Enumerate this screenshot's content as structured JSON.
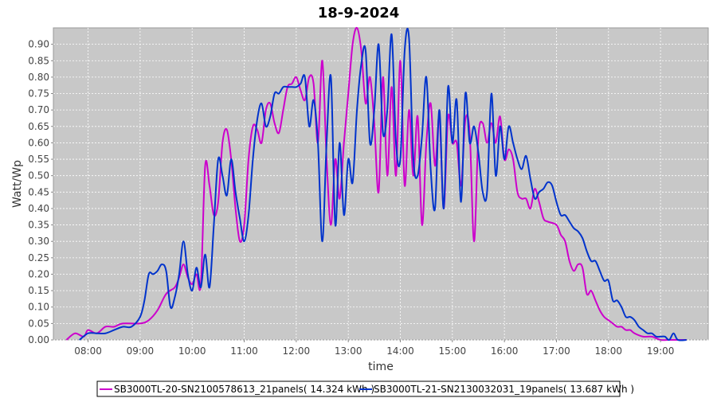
{
  "chart_data": {
    "type": "line",
    "title": "18-9-2024",
    "xlabel": "time",
    "ylabel": "Watt/Wp",
    "xlim": [
      "07:20",
      "19:55"
    ],
    "ylim": [
      0,
      0.95
    ],
    "x_ticks": [
      "08:00",
      "09:00",
      "10:00",
      "11:00",
      "12:00",
      "13:00",
      "14:00",
      "15:00",
      "16:00",
      "17:00",
      "18:00",
      "19:00"
    ],
    "y_ticks": [
      "0.00",
      "0.05",
      "0.10",
      "0.15",
      "0.20",
      "0.25",
      "0.30",
      "0.35",
      "0.40",
      "0.45",
      "0.50",
      "0.55",
      "0.60",
      "0.65",
      "0.70",
      "0.75",
      "0.80",
      "0.85",
      "0.90"
    ],
    "grid": true,
    "background": "#c8c8c8",
    "legend_position": "bottom",
    "series": [
      {
        "name": "SB3000TL-20-SN2100578613_21panels( 14.324 kWh )",
        "color": "#cc00cc",
        "points": [
          [
            "07:35",
            0.0
          ],
          [
            "07:45",
            0.02
          ],
          [
            "07:55",
            0.01
          ],
          [
            "08:00",
            0.03
          ],
          [
            "08:10",
            0.02
          ],
          [
            "08:20",
            0.04
          ],
          [
            "08:30",
            0.04
          ],
          [
            "08:40",
            0.05
          ],
          [
            "09:00",
            0.05
          ],
          [
            "09:10",
            0.06
          ],
          [
            "09:20",
            0.09
          ],
          [
            "09:30",
            0.14
          ],
          [
            "09:40",
            0.16
          ],
          [
            "09:45",
            0.19
          ],
          [
            "09:50",
            0.23
          ],
          [
            "09:55",
            0.19
          ],
          [
            "10:00",
            0.17
          ],
          [
            "10:05",
            0.2
          ],
          [
            "10:10",
            0.17
          ],
          [
            "10:15",
            0.53
          ],
          [
            "10:20",
            0.47
          ],
          [
            "10:25",
            0.38
          ],
          [
            "10:30",
            0.42
          ],
          [
            "10:35",
            0.6
          ],
          [
            "10:40",
            0.64
          ],
          [
            "10:45",
            0.55
          ],
          [
            "10:50",
            0.4
          ],
          [
            "10:55",
            0.3
          ],
          [
            "11:00",
            0.35
          ],
          [
            "11:05",
            0.55
          ],
          [
            "11:10",
            0.65
          ],
          [
            "11:15",
            0.64
          ],
          [
            "11:20",
            0.6
          ],
          [
            "11:25",
            0.7
          ],
          [
            "11:30",
            0.72
          ],
          [
            "11:35",
            0.66
          ],
          [
            "11:40",
            0.63
          ],
          [
            "11:45",
            0.7
          ],
          [
            "11:50",
            0.77
          ],
          [
            "11:55",
            0.78
          ],
          [
            "12:00",
            0.8
          ],
          [
            "12:05",
            0.76
          ],
          [
            "12:10",
            0.73
          ],
          [
            "12:15",
            0.8
          ],
          [
            "12:20",
            0.78
          ],
          [
            "12:25",
            0.6
          ],
          [
            "12:30",
            0.85
          ],
          [
            "12:35",
            0.55
          ],
          [
            "12:40",
            0.35
          ],
          [
            "12:45",
            0.55
          ],
          [
            "12:50",
            0.43
          ],
          [
            "12:55",
            0.6
          ],
          [
            "13:00",
            0.75
          ],
          [
            "13:05",
            0.9
          ],
          [
            "13:10",
            0.95
          ],
          [
            "13:15",
            0.88
          ],
          [
            "13:20",
            0.72
          ],
          [
            "13:25",
            0.8
          ],
          [
            "13:30",
            0.66
          ],
          [
            "13:35",
            0.45
          ],
          [
            "13:40",
            0.8
          ],
          [
            "13:45",
            0.5
          ],
          [
            "13:50",
            0.77
          ],
          [
            "13:55",
            0.5
          ],
          [
            "14:00",
            0.85
          ],
          [
            "14:05",
            0.47
          ],
          [
            "14:10",
            0.7
          ],
          [
            "14:15",
            0.5
          ],
          [
            "14:20",
            0.68
          ],
          [
            "14:25",
            0.35
          ],
          [
            "14:30",
            0.6
          ],
          [
            "14:35",
            0.72
          ],
          [
            "14:40",
            0.53
          ],
          [
            "14:45",
            0.68
          ],
          [
            "14:50",
            0.4
          ],
          [
            "14:55",
            0.68
          ],
          [
            "15:00",
            0.6
          ],
          [
            "15:05",
            0.6
          ],
          [
            "15:10",
            0.47
          ],
          [
            "15:15",
            0.67
          ],
          [
            "15:20",
            0.63
          ],
          [
            "15:25",
            0.3
          ],
          [
            "15:30",
            0.62
          ],
          [
            "15:35",
            0.66
          ],
          [
            "15:40",
            0.6
          ],
          [
            "15:45",
            0.66
          ],
          [
            "15:50",
            0.6
          ],
          [
            "15:55",
            0.68
          ],
          [
            "16:00",
            0.55
          ],
          [
            "16:05",
            0.58
          ],
          [
            "16:10",
            0.55
          ],
          [
            "16:15",
            0.45
          ],
          [
            "16:20",
            0.43
          ],
          [
            "16:25",
            0.43
          ],
          [
            "16:30",
            0.4
          ],
          [
            "16:35",
            0.46
          ],
          [
            "16:40",
            0.42
          ],
          [
            "16:45",
            0.37
          ],
          [
            "16:50",
            0.36
          ],
          [
            "17:00",
            0.35
          ],
          [
            "17:05",
            0.32
          ],
          [
            "17:10",
            0.3
          ],
          [
            "17:15",
            0.24
          ],
          [
            "17:20",
            0.21
          ],
          [
            "17:25",
            0.23
          ],
          [
            "17:30",
            0.22
          ],
          [
            "17:35",
            0.14
          ],
          [
            "17:40",
            0.15
          ],
          [
            "17:45",
            0.12
          ],
          [
            "17:50",
            0.09
          ],
          [
            "17:55",
            0.07
          ],
          [
            "18:00",
            0.06
          ],
          [
            "18:05",
            0.05
          ],
          [
            "18:10",
            0.04
          ],
          [
            "18:15",
            0.04
          ],
          [
            "18:20",
            0.03
          ],
          [
            "18:25",
            0.03
          ],
          [
            "18:30",
            0.02
          ],
          [
            "18:40",
            0.01
          ],
          [
            "18:50",
            0.01
          ],
          [
            "19:00",
            0.0
          ],
          [
            "19:10",
            0.0
          ],
          [
            "19:20",
            0.0
          ],
          [
            "19:30",
            0.0
          ]
        ]
      },
      {
        "name": "SB3000TL-21-SN2130032031_19panels( 13.687 kWh )",
        "color": "#0033cc",
        "points": [
          [
            "07:50",
            0.0
          ],
          [
            "08:00",
            0.02
          ],
          [
            "08:10",
            0.02
          ],
          [
            "08:20",
            0.02
          ],
          [
            "08:30",
            0.03
          ],
          [
            "08:40",
            0.04
          ],
          [
            "08:50",
            0.04
          ],
          [
            "09:00",
            0.07
          ],
          [
            "09:05",
            0.12
          ],
          [
            "09:10",
            0.2
          ],
          [
            "09:15",
            0.2
          ],
          [
            "09:20",
            0.21
          ],
          [
            "09:25",
            0.23
          ],
          [
            "09:30",
            0.21
          ],
          [
            "09:35",
            0.1
          ],
          [
            "09:40",
            0.13
          ],
          [
            "09:45",
            0.2
          ],
          [
            "09:50",
            0.3
          ],
          [
            "09:55",
            0.2
          ],
          [
            "10:00",
            0.15
          ],
          [
            "10:05",
            0.22
          ],
          [
            "10:10",
            0.16
          ],
          [
            "10:15",
            0.26
          ],
          [
            "10:20",
            0.16
          ],
          [
            "10:25",
            0.35
          ],
          [
            "10:30",
            0.55
          ],
          [
            "10:35",
            0.5
          ],
          [
            "10:40",
            0.44
          ],
          [
            "10:45",
            0.55
          ],
          [
            "10:50",
            0.45
          ],
          [
            "10:55",
            0.37
          ],
          [
            "11:00",
            0.3
          ],
          [
            "11:05",
            0.38
          ],
          [
            "11:10",
            0.55
          ],
          [
            "11:15",
            0.67
          ],
          [
            "11:20",
            0.72
          ],
          [
            "11:25",
            0.65
          ],
          [
            "11:30",
            0.68
          ],
          [
            "11:35",
            0.75
          ],
          [
            "11:40",
            0.75
          ],
          [
            "11:45",
            0.77
          ],
          [
            "11:50",
            0.77
          ],
          [
            "11:55",
            0.77
          ],
          [
            "12:00",
            0.77
          ],
          [
            "12:05",
            0.78
          ],
          [
            "12:10",
            0.8
          ],
          [
            "12:15",
            0.65
          ],
          [
            "12:20",
            0.73
          ],
          [
            "12:25",
            0.6
          ],
          [
            "12:30",
            0.3
          ],
          [
            "12:35",
            0.6
          ],
          [
            "12:40",
            0.8
          ],
          [
            "12:45",
            0.35
          ],
          [
            "12:50",
            0.6
          ],
          [
            "12:55",
            0.38
          ],
          [
            "13:00",
            0.55
          ],
          [
            "13:05",
            0.48
          ],
          [
            "13:10",
            0.7
          ],
          [
            "13:15",
            0.84
          ],
          [
            "13:20",
            0.88
          ],
          [
            "13:25",
            0.6
          ],
          [
            "13:30",
            0.7
          ],
          [
            "13:35",
            0.9
          ],
          [
            "13:40",
            0.63
          ],
          [
            "13:45",
            0.7
          ],
          [
            "13:50",
            0.93
          ],
          [
            "13:55",
            0.6
          ],
          [
            "14:00",
            0.55
          ],
          [
            "14:05",
            0.88
          ],
          [
            "14:10",
            0.92
          ],
          [
            "14:15",
            0.55
          ],
          [
            "14:20",
            0.5
          ],
          [
            "14:25",
            0.62
          ],
          [
            "14:30",
            0.8
          ],
          [
            "14:35",
            0.52
          ],
          [
            "14:40",
            0.4
          ],
          [
            "14:45",
            0.7
          ],
          [
            "14:50",
            0.4
          ],
          [
            "14:55",
            0.77
          ],
          [
            "15:00",
            0.6
          ],
          [
            "15:05",
            0.73
          ],
          [
            "15:10",
            0.42
          ],
          [
            "15:15",
            0.75
          ],
          [
            "15:20",
            0.6
          ],
          [
            "15:25",
            0.65
          ],
          [
            "15:30",
            0.57
          ],
          [
            "15:35",
            0.45
          ],
          [
            "15:40",
            0.45
          ],
          [
            "15:45",
            0.75
          ],
          [
            "15:50",
            0.5
          ],
          [
            "15:55",
            0.65
          ],
          [
            "16:00",
            0.55
          ],
          [
            "16:05",
            0.65
          ],
          [
            "16:10",
            0.6
          ],
          [
            "16:15",
            0.55
          ],
          [
            "16:20",
            0.52
          ],
          [
            "16:25",
            0.56
          ],
          [
            "16:30",
            0.49
          ],
          [
            "16:35",
            0.43
          ],
          [
            "16:40",
            0.45
          ],
          [
            "16:45",
            0.46
          ],
          [
            "16:50",
            0.48
          ],
          [
            "16:55",
            0.47
          ],
          [
            "17:00",
            0.42
          ],
          [
            "17:05",
            0.38
          ],
          [
            "17:10",
            0.38
          ],
          [
            "17:15",
            0.36
          ],
          [
            "17:20",
            0.34
          ],
          [
            "17:25",
            0.33
          ],
          [
            "17:30",
            0.31
          ],
          [
            "17:35",
            0.27
          ],
          [
            "17:40",
            0.24
          ],
          [
            "17:45",
            0.24
          ],
          [
            "17:50",
            0.21
          ],
          [
            "17:55",
            0.18
          ],
          [
            "18:00",
            0.18
          ],
          [
            "18:05",
            0.12
          ],
          [
            "18:10",
            0.12
          ],
          [
            "18:15",
            0.1
          ],
          [
            "18:20",
            0.07
          ],
          [
            "18:25",
            0.07
          ],
          [
            "18:30",
            0.06
          ],
          [
            "18:35",
            0.04
          ],
          [
            "18:40",
            0.03
          ],
          [
            "18:45",
            0.02
          ],
          [
            "18:50",
            0.02
          ],
          [
            "18:55",
            0.01
          ],
          [
            "19:00",
            0.01
          ],
          [
            "19:05",
            0.01
          ],
          [
            "19:10",
            0.0
          ],
          [
            "19:15",
            0.02
          ],
          [
            "19:20",
            0.0
          ],
          [
            "19:30",
            0.0
          ]
        ]
      }
    ]
  }
}
